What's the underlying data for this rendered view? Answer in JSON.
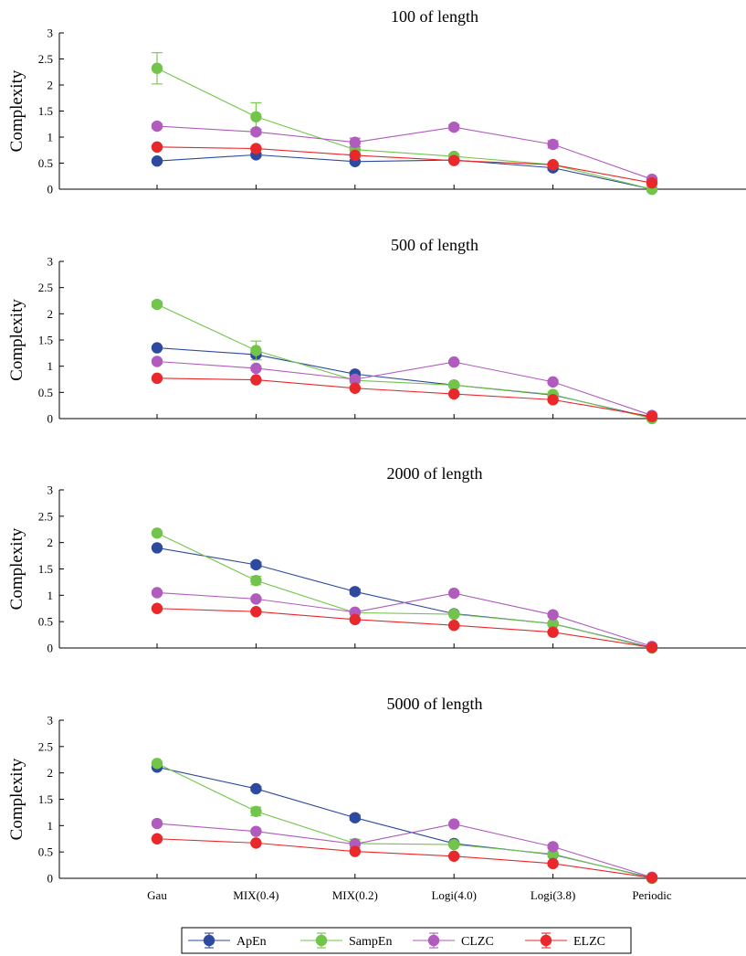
{
  "chart_data": [
    {
      "type": "line",
      "title": "100 of length",
      "ylabel": "Complexity",
      "xlabel": "",
      "categories": [
        "Gau",
        "MIX(0.4)",
        "MIX(0.2)",
        "Logi(4.0)",
        "Logi(3.8)",
        "Periodic"
      ],
      "ylim": [
        0,
        3
      ],
      "yticks": [
        0,
        0.5,
        1,
        1.5,
        2,
        2.5,
        3
      ],
      "series": [
        {
          "name": "ApEn",
          "color": "#2e4a9e",
          "values": [
            0.54,
            0.66,
            0.53,
            0.56,
            0.41,
            0.0
          ],
          "errors": [
            0.03,
            0.03,
            0.03,
            0.02,
            0.04,
            0.01
          ]
        },
        {
          "name": "SampEn",
          "color": "#72c54a",
          "values": [
            2.32,
            1.39,
            0.76,
            0.63,
            0.47,
            0.0
          ],
          "errors": [
            0.3,
            0.27,
            0.06,
            0.04,
            0.04,
            0.01
          ]
        },
        {
          "name": "CLZC",
          "color": "#b05bbd",
          "values": [
            1.21,
            1.1,
            0.9,
            1.19,
            0.86,
            0.19
          ],
          "errors": [
            0.04,
            0.05,
            0.08,
            0.05,
            0.07,
            0.02
          ]
        },
        {
          "name": "ELZC",
          "color": "#e8282a",
          "values": [
            0.81,
            0.78,
            0.65,
            0.55,
            0.47,
            0.12
          ],
          "errors": [
            0.02,
            0.03,
            0.03,
            0.02,
            0.03,
            0.02
          ]
        }
      ]
    },
    {
      "type": "line",
      "title": "500 of length",
      "ylabel": "Complexity",
      "xlabel": "",
      "categories": [
        "Gau",
        "MIX(0.4)",
        "MIX(0.2)",
        "Logi(4.0)",
        "Logi(3.8)",
        "Periodic"
      ],
      "ylim": [
        0,
        3
      ],
      "yticks": [
        0,
        0.5,
        1,
        1.5,
        2,
        2.5,
        3
      ],
      "series": [
        {
          "name": "ApEn",
          "color": "#2e4a9e",
          "values": [
            1.35,
            1.22,
            0.85,
            0.64,
            0.45,
            0.02
          ],
          "errors": [
            0.03,
            0.04,
            0.04,
            0.02,
            0.02,
            0.01
          ]
        },
        {
          "name": "SampEn",
          "color": "#72c54a",
          "values": [
            2.18,
            1.3,
            0.73,
            0.64,
            0.46,
            0.0
          ],
          "errors": [
            0.05,
            0.18,
            0.05,
            0.03,
            0.03,
            0.01
          ]
        },
        {
          "name": "CLZC",
          "color": "#b05bbd",
          "values": [
            1.09,
            0.96,
            0.75,
            1.08,
            0.7,
            0.06
          ],
          "errors": [
            0.03,
            0.03,
            0.03,
            0.03,
            0.03,
            0.01
          ]
        },
        {
          "name": "ELZC",
          "color": "#e8282a",
          "values": [
            0.77,
            0.74,
            0.58,
            0.47,
            0.36,
            0.04
          ],
          "errors": [
            0.02,
            0.02,
            0.02,
            0.02,
            0.02,
            0.01
          ]
        }
      ]
    },
    {
      "type": "line",
      "title": "2000 of length",
      "ylabel": "Complexity",
      "xlabel": "",
      "categories": [
        "Gau",
        "MIX(0.4)",
        "MIX(0.2)",
        "Logi(4.0)",
        "Logi(3.8)",
        "Periodic"
      ],
      "ylim": [
        0,
        3
      ],
      "yticks": [
        0,
        0.5,
        1,
        1.5,
        2,
        2.5,
        3
      ],
      "series": [
        {
          "name": "ApEn",
          "color": "#2e4a9e",
          "values": [
            1.9,
            1.58,
            1.07,
            0.65,
            0.46,
            0.01
          ],
          "errors": [
            0.02,
            0.05,
            0.05,
            0.02,
            0.02,
            0.01
          ]
        },
        {
          "name": "SampEn",
          "color": "#72c54a",
          "values": [
            2.18,
            1.28,
            0.67,
            0.64,
            0.46,
            0.0
          ],
          "errors": [
            0.03,
            0.08,
            0.04,
            0.02,
            0.02,
            0.01
          ]
        },
        {
          "name": "CLZC",
          "color": "#b05bbd",
          "values": [
            1.05,
            0.93,
            0.68,
            1.04,
            0.63,
            0.03
          ],
          "errors": [
            0.02,
            0.02,
            0.02,
            0.02,
            0.02,
            0.01
          ]
        },
        {
          "name": "ELZC",
          "color": "#e8282a",
          "values": [
            0.75,
            0.69,
            0.54,
            0.43,
            0.3,
            0.01
          ],
          "errors": [
            0.02,
            0.02,
            0.02,
            0.02,
            0.02,
            0.01
          ]
        }
      ]
    },
    {
      "type": "line",
      "title": "5000 of length",
      "ylabel": "Complexity",
      "xlabel": "",
      "categories": [
        "Gau",
        "MIX(0.4)",
        "MIX(0.2)",
        "Logi(4.0)",
        "Logi(3.8)",
        "Periodic"
      ],
      "ylim": [
        0,
        3
      ],
      "yticks": [
        0,
        0.5,
        1,
        1.5,
        2,
        2.5,
        3
      ],
      "series": [
        {
          "name": "ApEn",
          "color": "#2e4a9e",
          "values": [
            2.11,
            1.7,
            1.15,
            0.66,
            0.45,
            0.01
          ],
          "errors": [
            0.02,
            0.04,
            0.05,
            0.02,
            0.02,
            0.01
          ]
        },
        {
          "name": "SampEn",
          "color": "#72c54a",
          "values": [
            2.18,
            1.27,
            0.66,
            0.64,
            0.46,
            0.0
          ],
          "errors": [
            0.02,
            0.08,
            0.08,
            0.02,
            0.02,
            0.01
          ]
        },
        {
          "name": "CLZC",
          "color": "#b05bbd",
          "values": [
            1.04,
            0.89,
            0.65,
            1.03,
            0.6,
            0.02
          ],
          "errors": [
            0.02,
            0.02,
            0.02,
            0.02,
            0.02,
            0.01
          ]
        },
        {
          "name": "ELZC",
          "color": "#e8282a",
          "values": [
            0.75,
            0.67,
            0.51,
            0.42,
            0.28,
            0.01
          ],
          "errors": [
            0.02,
            0.02,
            0.02,
            0.02,
            0.02,
            0.01
          ]
        }
      ]
    }
  ],
  "legend": {
    "position": "bottom-center",
    "entries": [
      "ApEn",
      "SampEn",
      "CLZC",
      "ELZC"
    ]
  }
}
